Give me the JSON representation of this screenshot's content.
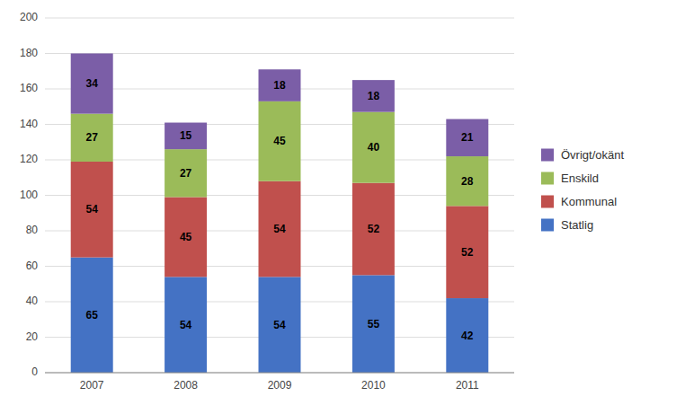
{
  "chart_data": {
    "type": "bar",
    "stacked": true,
    "categories": [
      "2007",
      "2008",
      "2009",
      "2010",
      "2011"
    ],
    "series": [
      {
        "name": "Statlig",
        "color": "#4472C4",
        "values": [
          65,
          54,
          54,
          55,
          42
        ]
      },
      {
        "name": "Kommunal",
        "color": "#C0504D",
        "values": [
          54,
          45,
          54,
          52,
          52
        ]
      },
      {
        "name": "Enskild",
        "color": "#9BBB59",
        "values": [
          27,
          27,
          45,
          40,
          28
        ]
      },
      {
        "name": "Övrigt/okänt",
        "color": "#7B5EA7",
        "values": [
          34,
          15,
          18,
          18,
          21
        ]
      }
    ],
    "ylim": [
      0,
      200
    ],
    "yticks": [
      0,
      20,
      40,
      60,
      80,
      100,
      120,
      140,
      160,
      180,
      200
    ],
    "grid": true,
    "data_labels": true,
    "legend": "right"
  }
}
